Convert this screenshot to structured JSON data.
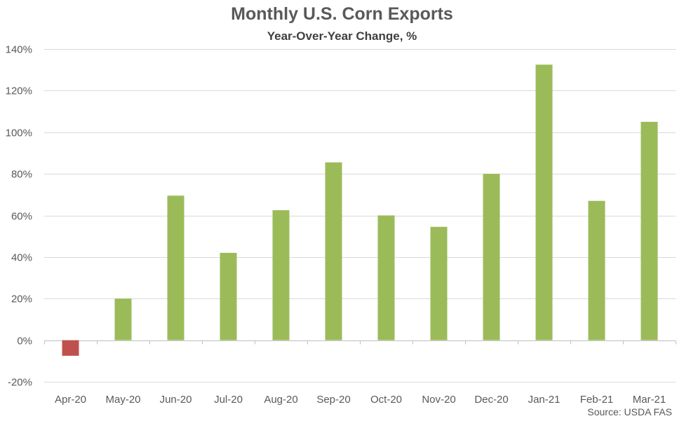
{
  "chart_data": {
    "type": "bar",
    "title": "Monthly U.S. Corn Exports",
    "subtitle": "Year-Over-Year Change, %",
    "source": "Source: USDA FAS",
    "categories": [
      "Apr-20",
      "May-20",
      "Jun-20",
      "Jul-20",
      "Aug-20",
      "Sep-20",
      "Oct-20",
      "Nov-20",
      "Dec-20",
      "Jan-21",
      "Feb-21",
      "Mar-21"
    ],
    "values": [
      -7.5,
      20,
      69.5,
      42,
      62.5,
      85.5,
      60,
      54.5,
      80,
      132.5,
      67,
      105
    ],
    "ylim": [
      -20,
      140
    ],
    "yticks": [
      -20,
      0,
      20,
      40,
      60,
      80,
      100,
      120,
      140
    ],
    "ytick_labels": [
      "-20%",
      "0%",
      "20%",
      "40%",
      "60%",
      "80%",
      "100%",
      "120%",
      "140%"
    ],
    "grid": "horizontal",
    "colors": {
      "positive": "#9BBB59",
      "negative": "#C0504D",
      "grid": "#D9D9D9",
      "axis": "#BFBFBF"
    }
  }
}
